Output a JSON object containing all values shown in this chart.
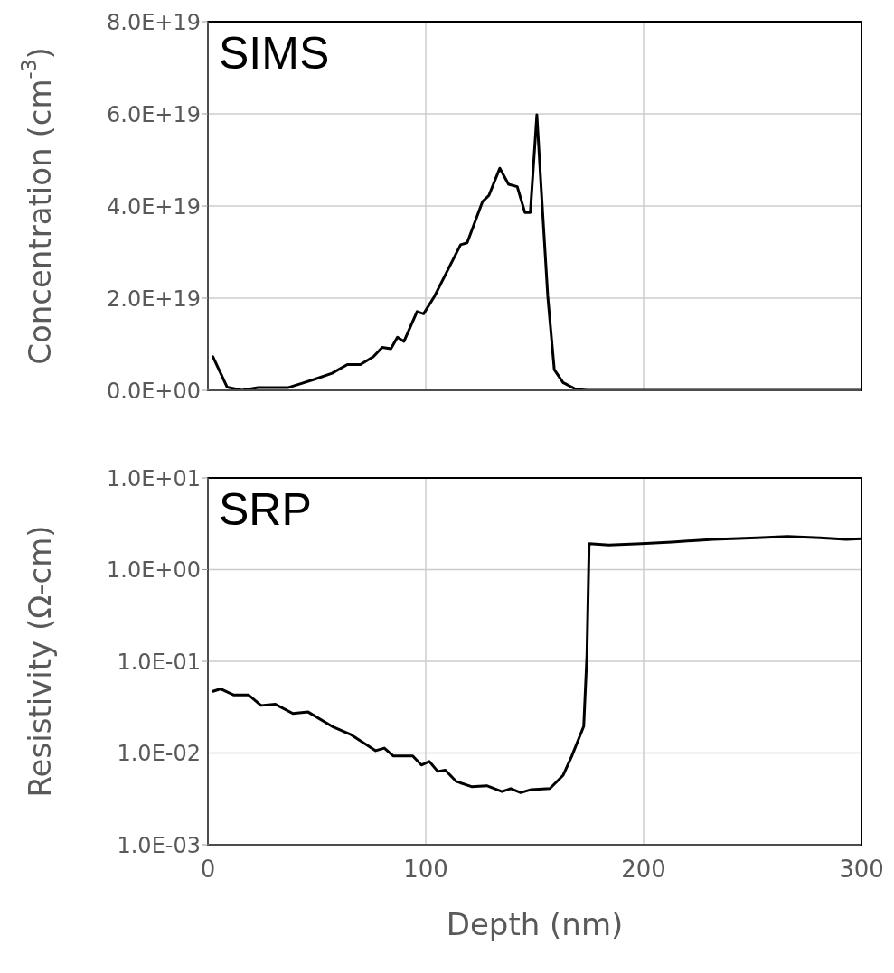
{
  "chart_data": [
    {
      "type": "line",
      "annotations": [
        "SIMS"
      ],
      "ylabel": "Concentration (cm$^{-3}$)",
      "xlim": [
        0,
        300
      ],
      "xticks": [
        0,
        100,
        200,
        300
      ],
      "ylim": [
        0,
        8e+19
      ],
      "yticks": [
        {
          "value": 0,
          "label": "0.0E+00"
        },
        {
          "value": 2e+19,
          "label": "2.0E+19"
        },
        {
          "value": 4e+19,
          "label": "4.0E+19"
        },
        {
          "value": 6e+19,
          "label": "6.0E+19"
        },
        {
          "value": 8e+19,
          "label": "8.0E+19"
        }
      ],
      "grid": true,
      "marker": "none",
      "line_style": "solid",
      "tick_labels": "y",
      "series": [
        {
          "color": "#000000",
          "x": [
            2.3,
            8.8,
            15.6,
            23,
            37,
            43,
            49,
            57,
            64,
            70,
            76,
            80,
            84,
            87,
            90,
            96,
            99,
            104,
            110,
            116,
            119,
            126,
            129,
            134,
            138,
            142,
            145.5,
            148,
            151,
            153,
            156,
            159,
            163,
            169,
            174,
            200,
            250,
            300
          ],
          "values": [
            7.3e+18,
            7e+17,
            0,
            6e+17,
            6e+17,
            1.5e+18,
            2.4e+18,
            3.7e+18,
            5.6e+18,
            5.6e+18,
            7.3e+18,
            9.3e+18,
            9e+18,
            1.15e+19,
            1.06e+19,
            1.71e+19,
            1.66e+19,
            2.04e+19,
            2.6e+19,
            3.16e+19,
            3.2e+19,
            4.09e+19,
            4.23e+19,
            4.82e+19,
            4.47e+19,
            4.42e+19,
            3.86e+19,
            3.86e+19,
            5.98e+19,
            4.37e+19,
            2.04e+19,
            4.5e+18,
            1.7e+18,
            2e+17,
            0,
            0,
            0,
            0
          ]
        }
      ]
    },
    {
      "type": "line",
      "annotations": [
        "SRP"
      ],
      "xlabel": "Depth (nm)",
      "ylabel": "Resistivity (Ω-cm)",
      "log": "y",
      "xlim": [
        0,
        300
      ],
      "xticks": [
        0,
        100,
        200,
        300
      ],
      "ylim": [
        0.001,
        10
      ],
      "yticks": [
        {
          "value": 0.001,
          "label": "1.0E-03"
        },
        {
          "value": 0.01,
          "label": "1.0E-02"
        },
        {
          "value": 0.1,
          "label": "1.0E-01"
        },
        {
          "value": 1,
          "label": "1.0E+00"
        },
        {
          "value": 10,
          "label": "1.0E+01"
        }
      ],
      "grid": true,
      "marker": "none",
      "line_style": "solid",
      "series": [
        {
          "color": "#000000",
          "x": [
            2.3,
            5.9,
            11.7,
            18.6,
            24.4,
            31,
            39,
            46,
            57,
            65.4,
            77,
            81,
            85,
            94,
            98,
            101.6,
            105.5,
            109,
            114,
            121,
            128,
            135,
            139,
            143.6,
            148.4,
            157,
            163,
            167,
            172.5,
            174,
            175,
            184,
            199,
            213,
            232,
            252,
            266,
            281,
            293,
            300
          ],
          "values": [
            0.047,
            0.05,
            0.043,
            0.043,
            0.033,
            0.034,
            0.027,
            0.028,
            0.0195,
            0.016,
            0.0106,
            0.0113,
            0.0093,
            0.0093,
            0.0074,
            0.0081,
            0.0063,
            0.0065,
            0.0049,
            0.0043,
            0.0044,
            0.0038,
            0.0041,
            0.0037,
            0.004,
            0.0041,
            0.0057,
            0.0092,
            0.0195,
            0.12,
            1.92,
            1.86,
            1.92,
            2.0,
            2.14,
            2.23,
            2.3,
            2.23,
            2.14,
            2.18
          ]
        }
      ]
    }
  ]
}
